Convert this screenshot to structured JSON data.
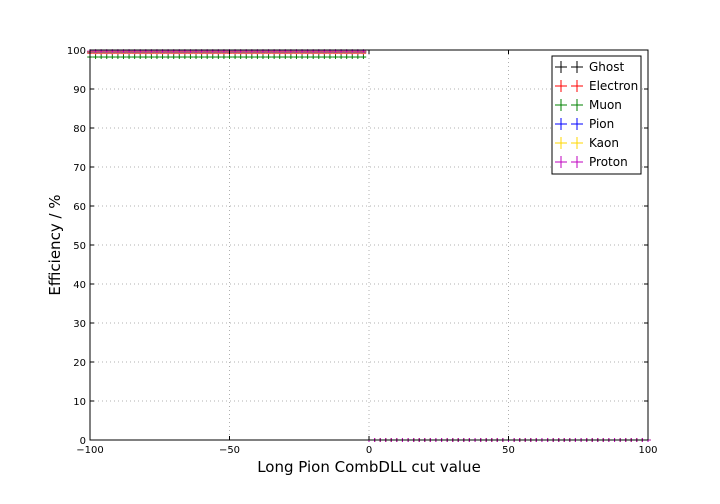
{
  "chart_data": {
    "type": "scatter",
    "title": "",
    "xlabel": "Long Pion CombDLL cut value",
    "ylabel": "Efficiency / %",
    "xlim": [
      -100,
      100
    ],
    "ylim": [
      0,
      100
    ],
    "x_ticks": [
      "−100",
      "−50",
      "0",
      "50",
      "100"
    ],
    "x_tick_values": [
      -100,
      -50,
      0,
      50,
      100
    ],
    "y_ticks": [
      "0",
      "10",
      "20",
      "30",
      "40",
      "50",
      "60",
      "70",
      "80",
      "90",
      "100"
    ],
    "y_tick_values": [
      0,
      10,
      20,
      30,
      40,
      50,
      60,
      70,
      80,
      90,
      100
    ],
    "grid": true,
    "legend_position": "top-right",
    "x_start": -100,
    "x_step": 2,
    "series": [
      {
        "name": "Ghost",
        "color": "#000000",
        "x_cut": 0,
        "value_below_cut": 99.6,
        "value_above_cut": 0
      },
      {
        "name": "Electron",
        "color": "#ff0000",
        "x_cut": 0,
        "value_below_cut": 99.2,
        "value_above_cut": 0
      },
      {
        "name": "Muon",
        "color": "#008000",
        "x_cut": 0,
        "value_below_cut": 98.2,
        "value_above_cut": 0
      },
      {
        "name": "Pion",
        "color": "#0000ff",
        "x_cut": 0,
        "value_below_cut": 99.4,
        "value_above_cut": 0
      },
      {
        "name": "Kaon",
        "color": "#ffd700",
        "x_cut": 0,
        "value_below_cut": 99.5,
        "value_above_cut": 0
      },
      {
        "name": "Proton",
        "color": "#bf00bf",
        "x_cut": 0,
        "value_below_cut": 99.7,
        "value_above_cut": 0
      }
    ]
  }
}
